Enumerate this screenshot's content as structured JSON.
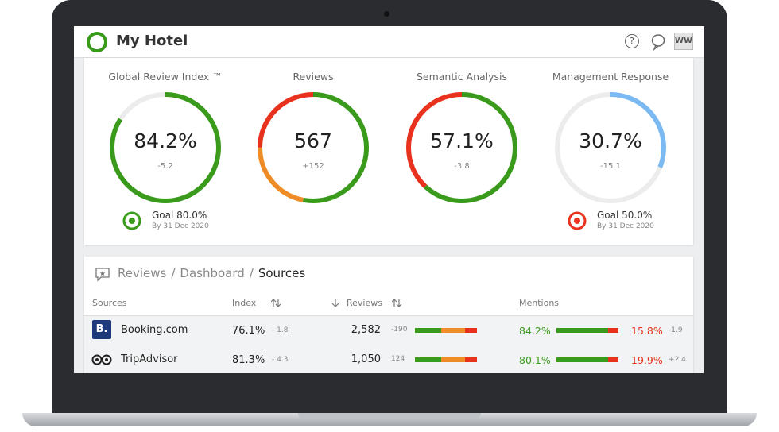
{
  "header": {
    "title": "My Hotel",
    "help_icon": "?",
    "user_initials": "WW"
  },
  "metrics": [
    {
      "title": "Global Review Index ™",
      "value": "84.2%",
      "change": "-5.2",
      "goal": "Goal 80.0%",
      "goal_date": "By 31 Dec 2020"
    },
    {
      "title": "Reviews",
      "value": "567",
      "change": "+152"
    },
    {
      "title": "Semantic Analysis",
      "value": "57.1%",
      "change": "-3.8"
    },
    {
      "title": "Management Response",
      "value": "30.7%",
      "change": "-15.1",
      "goal": "Goal 50.0%",
      "goal_date": "By 31 Dec 2020"
    }
  ],
  "breadcrumb": {
    "items": [
      "Reviews",
      "Dashboard",
      "Sources"
    ],
    "separator": "/"
  },
  "table": {
    "columns": [
      "Sources",
      "Index",
      "Reviews",
      "Mentions"
    ],
    "rows": [
      {
        "icon": "B.",
        "source": "Booking.com",
        "index": "76.1%",
        "index_change": "- 1.8",
        "reviews": "2,582",
        "reviews_change": "-190",
        "positive": "84.2%",
        "negative": "15.8%",
        "mentions_change": "-1.9"
      },
      {
        "source": "TripAdvisor",
        "index": "81.3%",
        "index_change": "- 4.3",
        "reviews": "1,050",
        "reviews_change": "124",
        "positive": "80.1%",
        "negative": "19.9%",
        "mentions_change": "+2.4"
      }
    ]
  }
}
